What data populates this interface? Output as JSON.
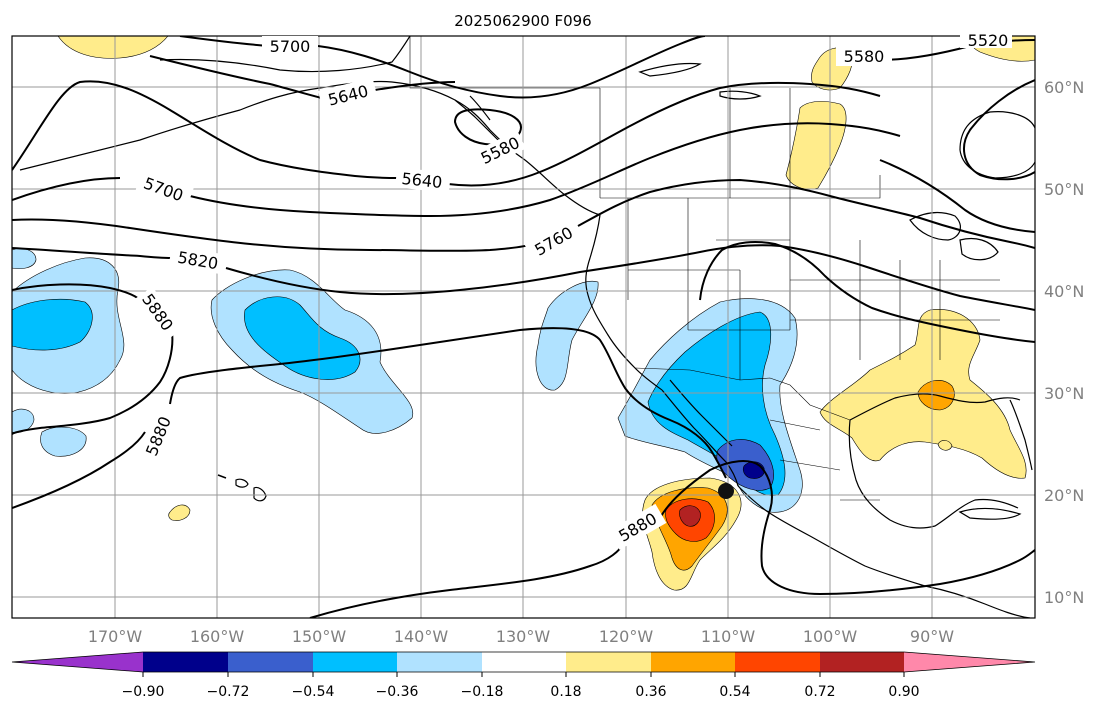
{
  "title": "2025062900 F096",
  "lon_labels": [
    "170°W",
    "160°W",
    "150°W",
    "140°W",
    "130°W",
    "120°W",
    "110°W",
    "100°W",
    "90°W"
  ],
  "lat_labels": [
    "60°N",
    "50°N",
    "40°N",
    "30°N",
    "20°N",
    "10°N"
  ],
  "contour_labels": [
    "5700",
    "5640",
    "5580",
    "5580",
    "5520",
    "5640",
    "5700",
    "5760",
    "5820",
    "5880",
    "5880",
    "5880"
  ],
  "colorbar": {
    "colors": [
      "#9932cc",
      "#00008b",
      "#3a5fcd",
      "#00bfff",
      "#b0e2ff",
      "#ffffff",
      "#ffec8b",
      "#ffa500",
      "#ff4500",
      "#b22222",
      "#ff88aa"
    ],
    "tick_labels": [
      "−0.90",
      "−0.72",
      "−0.54",
      "−0.36",
      "−0.18",
      "0.18",
      "0.36",
      "0.54",
      "0.72",
      "0.90"
    ]
  },
  "fill_colors": {
    "light_blue": "#b0e2ff",
    "blue": "#00bfff",
    "medium_blue": "#3a5fcd",
    "dark_blue": "#00008b",
    "yellow": "#ffec8b",
    "orange": "#ffa500",
    "red_orange": "#ff4500",
    "dark_red": "#b22222"
  },
  "storm_marker_icon": "black-circle-icon"
}
